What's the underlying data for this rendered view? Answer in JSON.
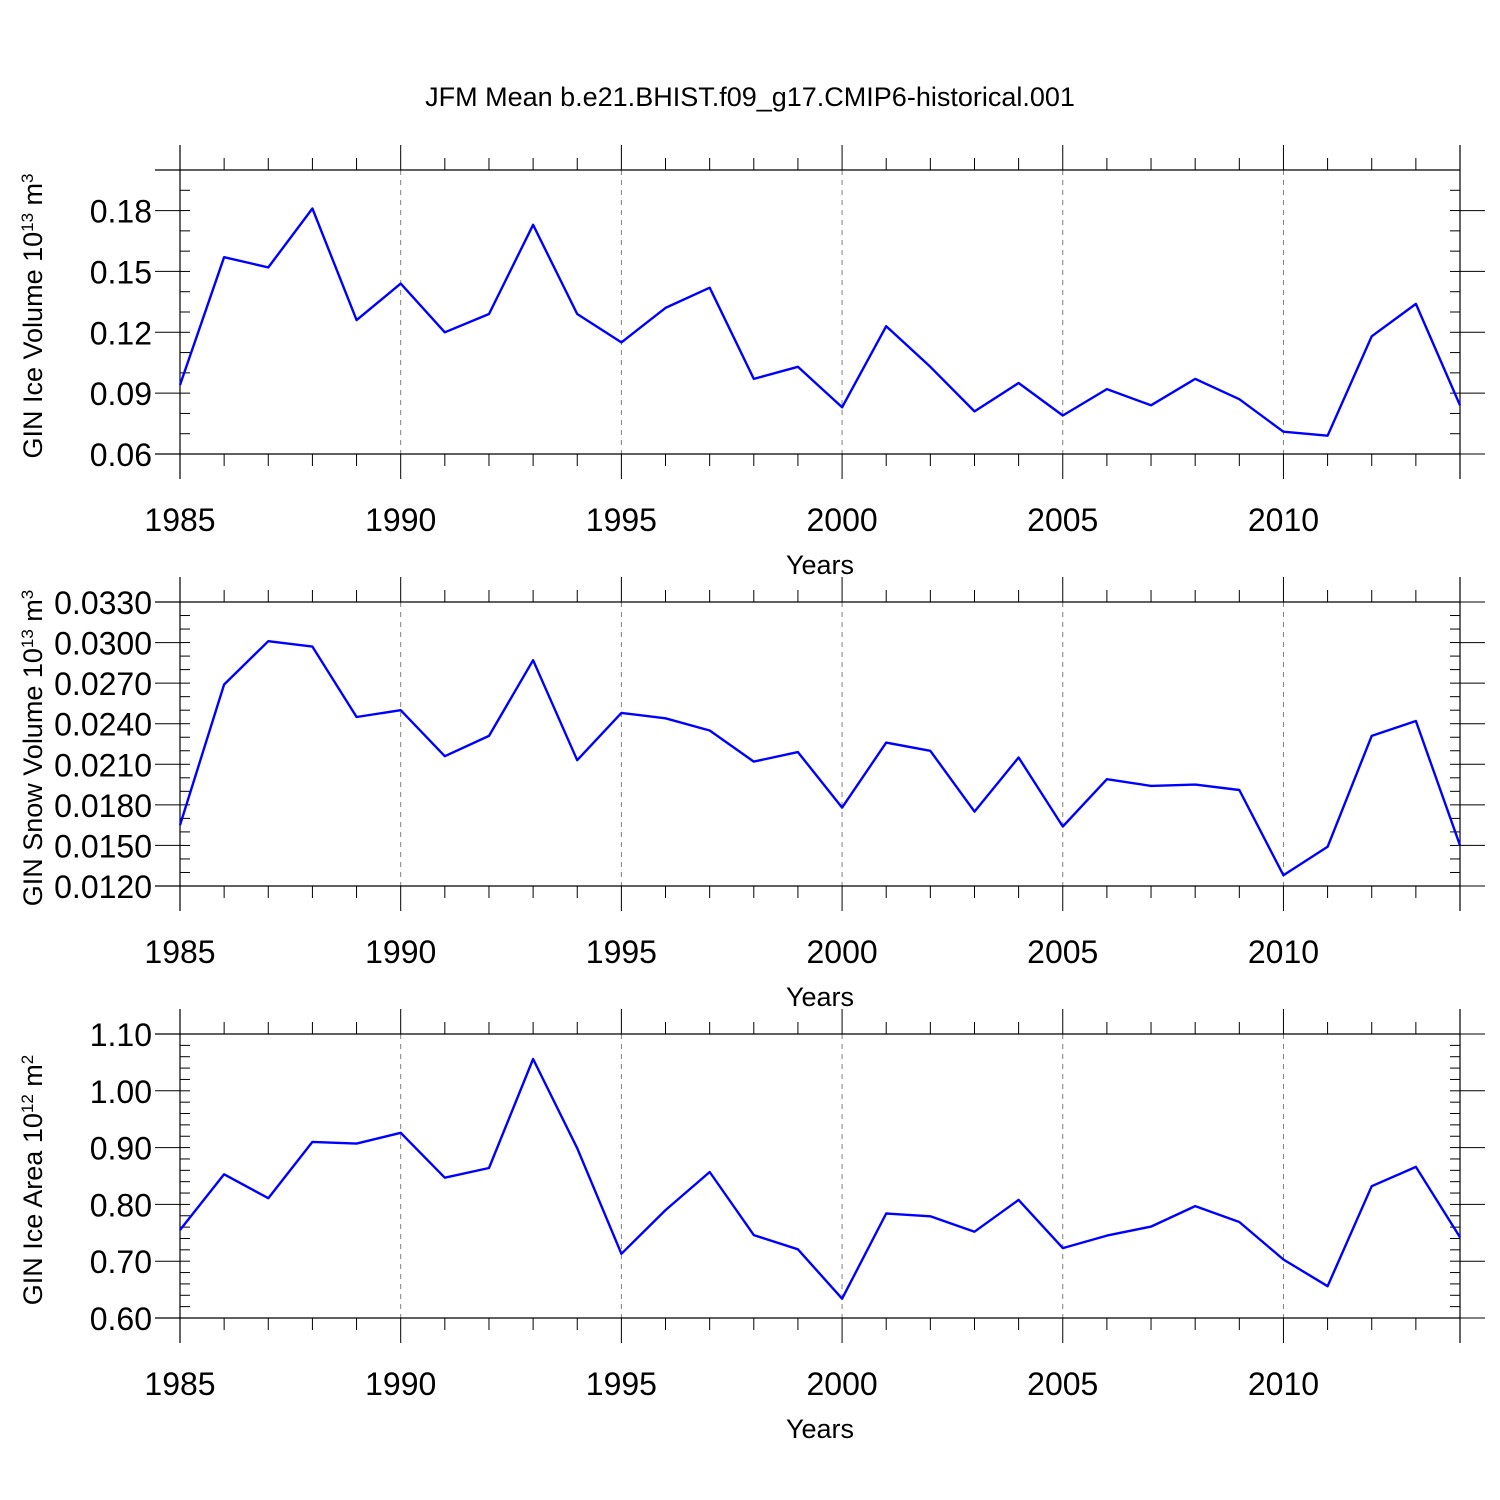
{
  "title": "JFM Mean b.e21.BHIST.f09_g17.CMIP6-historical.001",
  "colors": {
    "line": "#0000ff",
    "axis": "#000000",
    "grid": "#808080"
  },
  "chart_data": [
    {
      "type": "line",
      "xlabel": "Years",
      "ylabel_main": "GIN Ice Volume 10",
      "ylabel_sup": "13",
      "ylabel_unit": " m",
      "ylabel_unit_sup": "3",
      "xlim": [
        1985,
        2014
      ],
      "ylim": [
        0.06,
        0.2
      ],
      "x_ticks": [
        1985,
        1990,
        1995,
        2000,
        2005,
        2010
      ],
      "x_tick_labels": [
        "1985",
        "1990",
        "1995",
        "2000",
        "2005",
        "2010"
      ],
      "y_ticks": [
        0.06,
        0.09,
        0.12,
        0.15,
        0.18
      ],
      "y_tick_labels": [
        "0.06",
        "0.09",
        "0.12",
        "0.15",
        "0.18"
      ],
      "y_minor_step": 0.01,
      "x": [
        1985,
        1986,
        1987,
        1988,
        1989,
        1990,
        1991,
        1992,
        1993,
        1994,
        1995,
        1996,
        1997,
        1998,
        1999,
        2000,
        2001,
        2002,
        2003,
        2004,
        2005,
        2006,
        2007,
        2008,
        2009,
        2010,
        2011,
        2012,
        2013,
        2014
      ],
      "series": [
        {
          "name": "GIN Ice Volume",
          "values": [
            0.094,
            0.157,
            0.152,
            0.181,
            0.126,
            0.144,
            0.12,
            0.129,
            0.173,
            0.129,
            0.115,
            0.132,
            0.142,
            0.097,
            0.103,
            0.083,
            0.123,
            0.103,
            0.081,
            0.095,
            0.079,
            0.092,
            0.084,
            0.097,
            0.087,
            0.071,
            0.069,
            0.118,
            0.134,
            0.084
          ]
        }
      ]
    },
    {
      "type": "line",
      "xlabel": "Years",
      "ylabel_main": "GIN Snow Volume 10",
      "ylabel_sup": "13",
      "ylabel_unit": " m",
      "ylabel_unit_sup": "3",
      "xlim": [
        1985,
        2014
      ],
      "ylim": [
        0.012,
        0.033
      ],
      "x_ticks": [
        1985,
        1990,
        1995,
        2000,
        2005,
        2010
      ],
      "x_tick_labels": [
        "1985",
        "1990",
        "1995",
        "2000",
        "2005",
        "2010"
      ],
      "y_ticks": [
        0.012,
        0.015,
        0.018,
        0.021,
        0.024,
        0.027,
        0.03,
        0.033
      ],
      "y_tick_labels": [
        "0.0120",
        "0.0150",
        "0.0180",
        "0.0210",
        "0.0240",
        "0.0270",
        "0.0300",
        "0.0330"
      ],
      "y_minor_step": 0.001,
      "x": [
        1985,
        1986,
        1987,
        1988,
        1989,
        1990,
        1991,
        1992,
        1993,
        1994,
        1995,
        1996,
        1997,
        1998,
        1999,
        2000,
        2001,
        2002,
        2003,
        2004,
        2005,
        2006,
        2007,
        2008,
        2009,
        2010,
        2011,
        2012,
        2013,
        2014
      ],
      "series": [
        {
          "name": "GIN Snow Volume",
          "values": [
            0.0165,
            0.0269,
            0.0301,
            0.0297,
            0.0245,
            0.025,
            0.0216,
            0.0231,
            0.0287,
            0.0213,
            0.0248,
            0.0244,
            0.0235,
            0.0212,
            0.0219,
            0.0178,
            0.0226,
            0.022,
            0.0175,
            0.0215,
            0.0164,
            0.0199,
            0.0194,
            0.0195,
            0.0191,
            0.0128,
            0.0149,
            0.0231,
            0.0242,
            0.015
          ]
        }
      ]
    },
    {
      "type": "line",
      "xlabel": "Years",
      "ylabel_main": "GIN Ice Area 10",
      "ylabel_sup": "12",
      "ylabel_unit": " m",
      "ylabel_unit_sup": "2",
      "xlim": [
        1985,
        2014
      ],
      "ylim": [
        0.6,
        1.1
      ],
      "x_ticks": [
        1985,
        1990,
        1995,
        2000,
        2005,
        2010
      ],
      "x_tick_labels": [
        "1985",
        "1990",
        "1995",
        "2000",
        "2005",
        "2010"
      ],
      "y_ticks": [
        0.6,
        0.7,
        0.8,
        0.9,
        1.0,
        1.1
      ],
      "y_tick_labels": [
        "0.60",
        "0.70",
        "0.80",
        "0.90",
        "1.00",
        "1.10"
      ],
      "y_minor_step": 0.02,
      "x": [
        1985,
        1986,
        1987,
        1988,
        1989,
        1990,
        1991,
        1992,
        1993,
        1994,
        1995,
        1996,
        1997,
        1998,
        1999,
        2000,
        2001,
        2002,
        2003,
        2004,
        2005,
        2006,
        2007,
        2008,
        2009,
        2010,
        2011,
        2012,
        2013,
        2014
      ],
      "series": [
        {
          "name": "GIN Ice Area",
          "values": [
            0.755,
            0.853,
            0.811,
            0.91,
            0.907,
            0.926,
            0.847,
            0.864,
            1.056,
            0.899,
            0.713,
            0.79,
            0.857,
            0.746,
            0.721,
            0.634,
            0.784,
            0.779,
            0.752,
            0.808,
            0.723,
            0.745,
            0.761,
            0.797,
            0.769,
            0.703,
            0.656,
            0.832,
            0.866,
            0.742
          ]
        }
      ]
    }
  ]
}
